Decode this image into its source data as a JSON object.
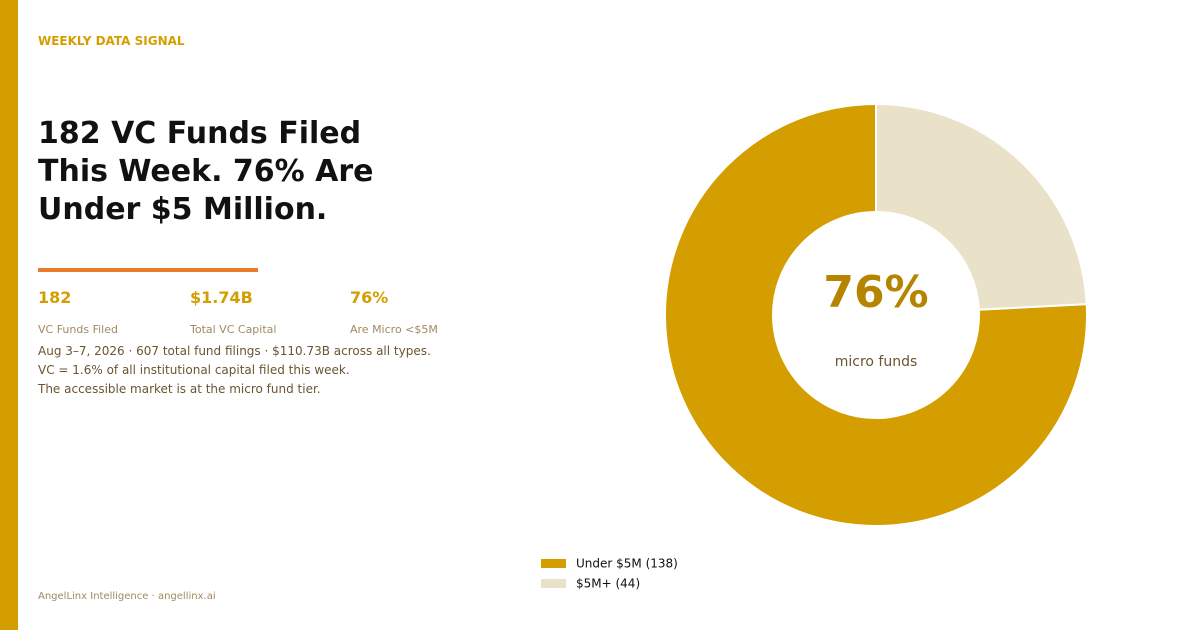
{
  "eyebrow": "WEEKLY DATA SIGNAL",
  "headline": [
    "182 VC Funds Filed",
    "This Week. 76% Are",
    "Under $5 Million."
  ],
  "stats": [
    {
      "value": "182",
      "label": "VC Funds Filed"
    },
    {
      "value": "$1.74B",
      "label": "Total VC Capital"
    },
    {
      "value": "76%",
      "label": "Are Micro <$5M"
    }
  ],
  "description": [
    "Aug 3–7, 2026 · 607 total fund filings · $110.73B across all types.",
    "VC = 1.6% of all institutional capital filed this week.",
    "The accessible market is at the micro fund tier."
  ],
  "footer": "AngelLinx Intelligence · angellinx.ai",
  "chart_data": {
    "type": "donut",
    "categories": [
      "Under $5M (138)",
      "$5M+ (44)"
    ],
    "values": [
      138,
      44
    ],
    "colors": [
      "#d59e00",
      "#e9e2c9"
    ],
    "center_text": "76%",
    "center_subtext": "micro funds"
  }
}
